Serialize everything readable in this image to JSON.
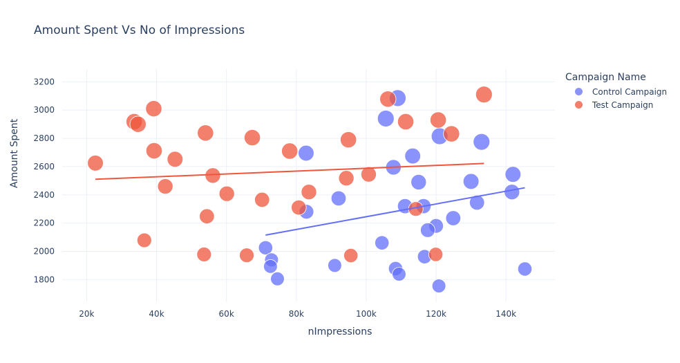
{
  "chart_data": {
    "type": "scatter",
    "title": "Amount Spent Vs No of Impressions",
    "xlabel": "nImpressions",
    "ylabel": "Amount Spent",
    "xlim": [
      13000,
      154000
    ],
    "ylim": [
      1640,
      3290
    ],
    "x_ticks": [
      20000,
      40000,
      60000,
      80000,
      100000,
      120000,
      140000
    ],
    "x_tick_labels": [
      "20k",
      "40k",
      "60k",
      "80k",
      "100k",
      "120k",
      "140k"
    ],
    "y_ticks": [
      1800,
      2000,
      2200,
      2400,
      2600,
      2800,
      3000,
      3200
    ],
    "y_tick_labels": [
      "1800",
      "2000",
      "2200",
      "2400",
      "2600",
      "2800",
      "3000",
      "3200"
    ],
    "grid": true,
    "legend": {
      "title": "Campaign Name",
      "position": "right"
    },
    "series": [
      {
        "name": "Control Campaign",
        "color": "#636efa",
        "points": [
          {
            "x": 109000,
            "y": 3085,
            "size": 1
          },
          {
            "x": 105600,
            "y": 2940,
            "size": 1
          },
          {
            "x": 121000,
            "y": 2815,
            "size": 1
          },
          {
            "x": 133000,
            "y": 2775,
            "size": 1
          },
          {
            "x": 82800,
            "y": 2695,
            "size": 0.9
          },
          {
            "x": 113300,
            "y": 2675,
            "size": 0.9
          },
          {
            "x": 107800,
            "y": 2595,
            "size": 0.85
          },
          {
            "x": 142000,
            "y": 2545,
            "size": 0.9
          },
          {
            "x": 130000,
            "y": 2495,
            "size": 0.9
          },
          {
            "x": 115000,
            "y": 2490,
            "size": 0.85
          },
          {
            "x": 141700,
            "y": 2420,
            "size": 0.85
          },
          {
            "x": 92100,
            "y": 2375,
            "size": 0.8
          },
          {
            "x": 131700,
            "y": 2345,
            "size": 0.8
          },
          {
            "x": 111100,
            "y": 2320,
            "size": 0.8
          },
          {
            "x": 116400,
            "y": 2320,
            "size": 0.8
          },
          {
            "x": 82900,
            "y": 2280,
            "size": 0.75
          },
          {
            "x": 124900,
            "y": 2235,
            "size": 0.8
          },
          {
            "x": 120000,
            "y": 2180,
            "size": 0.75
          },
          {
            "x": 117600,
            "y": 2150,
            "size": 0.75
          },
          {
            "x": 104500,
            "y": 2060,
            "size": 0.7
          },
          {
            "x": 71200,
            "y": 2025,
            "size": 0.7
          },
          {
            "x": 116700,
            "y": 1962,
            "size": 0.7
          },
          {
            "x": 72900,
            "y": 1940,
            "size": 0.65
          },
          {
            "x": 91000,
            "y": 1900,
            "size": 0.65
          },
          {
            "x": 72600,
            "y": 1893,
            "size": 0.65
          },
          {
            "x": 108400,
            "y": 1878,
            "size": 0.7
          },
          {
            "x": 145400,
            "y": 1875,
            "size": 0.7
          },
          {
            "x": 109400,
            "y": 1838,
            "size": 0.65
          },
          {
            "x": 74600,
            "y": 1805,
            "size": 0.65
          },
          {
            "x": 120800,
            "y": 1755,
            "size": 0.65
          }
        ],
        "trendline": {
          "x": [
            71200,
            145400
          ],
          "y": [
            2115,
            2450
          ]
        }
      },
      {
        "name": "Test Campaign",
        "color": "#ef553b",
        "points": [
          {
            "x": 133700,
            "y": 3110,
            "size": 1
          },
          {
            "x": 106200,
            "y": 3078,
            "size": 0.95
          },
          {
            "x": 39200,
            "y": 3010,
            "size": 0.95
          },
          {
            "x": 33600,
            "y": 2918,
            "size": 0.95
          },
          {
            "x": 34700,
            "y": 2900,
            "size": 0.95
          },
          {
            "x": 111300,
            "y": 2918,
            "size": 0.95
          },
          {
            "x": 120600,
            "y": 2930,
            "size": 0.95
          },
          {
            "x": 54000,
            "y": 2838,
            "size": 0.95
          },
          {
            "x": 124400,
            "y": 2832,
            "size": 0.95
          },
          {
            "x": 67400,
            "y": 2805,
            "size": 0.95
          },
          {
            "x": 94900,
            "y": 2790,
            "size": 0.95
          },
          {
            "x": 39300,
            "y": 2712,
            "size": 0.95
          },
          {
            "x": 78100,
            "y": 2710,
            "size": 0.95
          },
          {
            "x": 45300,
            "y": 2652,
            "size": 0.9
          },
          {
            "x": 22500,
            "y": 2625,
            "size": 0.9
          },
          {
            "x": 100700,
            "y": 2545,
            "size": 0.85
          },
          {
            "x": 56100,
            "y": 2537,
            "size": 0.85
          },
          {
            "x": 94300,
            "y": 2518,
            "size": 0.85
          },
          {
            "x": 42500,
            "y": 2460,
            "size": 0.85
          },
          {
            "x": 83600,
            "y": 2420,
            "size": 0.85
          },
          {
            "x": 60100,
            "y": 2408,
            "size": 0.85
          },
          {
            "x": 70200,
            "y": 2365,
            "size": 0.8
          },
          {
            "x": 80700,
            "y": 2310,
            "size": 0.8
          },
          {
            "x": 114200,
            "y": 2300,
            "size": 0.75
          },
          {
            "x": 54400,
            "y": 2248,
            "size": 0.8
          },
          {
            "x": 36500,
            "y": 2078,
            "size": 0.75
          },
          {
            "x": 53600,
            "y": 1978,
            "size": 0.75
          },
          {
            "x": 119900,
            "y": 1978,
            "size": 0.7
          },
          {
            "x": 65800,
            "y": 1972,
            "size": 0.75
          },
          {
            "x": 95600,
            "y": 1970,
            "size": 0.7
          }
        ],
        "trendline": {
          "x": [
            22500,
            133700
          ],
          "y": [
            2510,
            2622
          ]
        }
      }
    ]
  }
}
